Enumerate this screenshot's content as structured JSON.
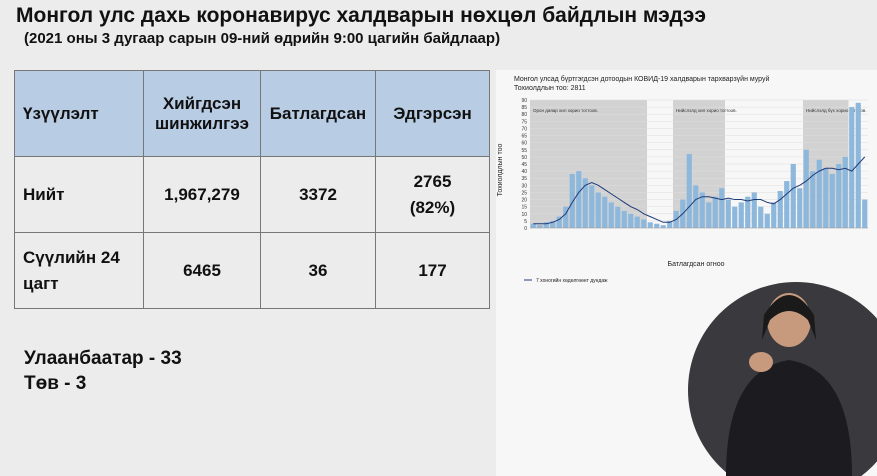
{
  "header": {
    "title": "Монгол улс дахь коронавирус халдварын нөхцөл байдлын мэдээ",
    "subtitle": "(2021 оны 3 дугаар сарын 09-ний өдрийн 9:00 цагийн байдлаар)"
  },
  "table": {
    "columns": [
      "Үзүүлэлт",
      "Хийгдсэн шинжилгээ",
      "Батлагдсан",
      "Эдгэрсэн"
    ],
    "rows": [
      [
        "Нийт",
        "1,967,279",
        "3372",
        "2765 (82%)"
      ],
      [
        "Сүүлийн 24 цагт",
        "6465",
        "36",
        "177"
      ]
    ]
  },
  "notes": [
    "Улаанбаатар - 33",
    "Төв - 3"
  ],
  "chart_data": {
    "type": "bar",
    "title": "Монгол улсад бүртгэгдсэн дотоодын КОВИД-19 халдварын тархварзүйн муруй",
    "subtitle": "Тохиолдлын тоо: 2811",
    "y_label": "Тохиолдлын тоо",
    "x_label": "Батлагдсан огноо",
    "annotations": [
      "Орон даяар хил хорио тогтоов.",
      "Нийслэлд хил хорио тогтоов.",
      "Нийслэлд бүх хорио тогтоов."
    ],
    "ylim": [
      0,
      90
    ],
    "yticks": [
      0,
      5,
      10,
      15,
      20,
      25,
      30,
      35,
      40,
      45,
      50,
      55,
      60,
      65,
      70,
      75,
      80,
      85,
      90
    ],
    "series": [
      {
        "name": null,
        "color": "#8db8dc",
        "values": [
          3,
          2,
          4,
          5,
          8,
          15,
          38,
          40,
          35,
          30,
          25,
          22,
          18,
          15,
          12,
          10,
          8,
          6,
          4,
          3,
          2,
          5,
          12,
          20,
          52,
          30,
          25,
          18,
          22,
          28,
          20,
          15,
          18,
          22,
          25,
          15,
          10,
          18,
          26,
          33,
          45,
          28,
          55,
          40,
          48,
          42,
          38,
          45,
          50,
          85,
          88,
          20
        ]
      },
      {
        "name": "7 хоногийн хөдөлгөөнт дундаж",
        "color": "#1f3a7a",
        "type": "line",
        "values": [
          3,
          3,
          3,
          4,
          6,
          10,
          18,
          25,
          30,
          32,
          30,
          27,
          24,
          21,
          18,
          15,
          13,
          10,
          8,
          6,
          4,
          4,
          6,
          10,
          15,
          20,
          22,
          22,
          21,
          20,
          21,
          20,
          20,
          19,
          20,
          20,
          18,
          17,
          20,
          24,
          28,
          30,
          33,
          37,
          40,
          42,
          42,
          41,
          42,
          40,
          45,
          50
        ]
      }
    ]
  }
}
